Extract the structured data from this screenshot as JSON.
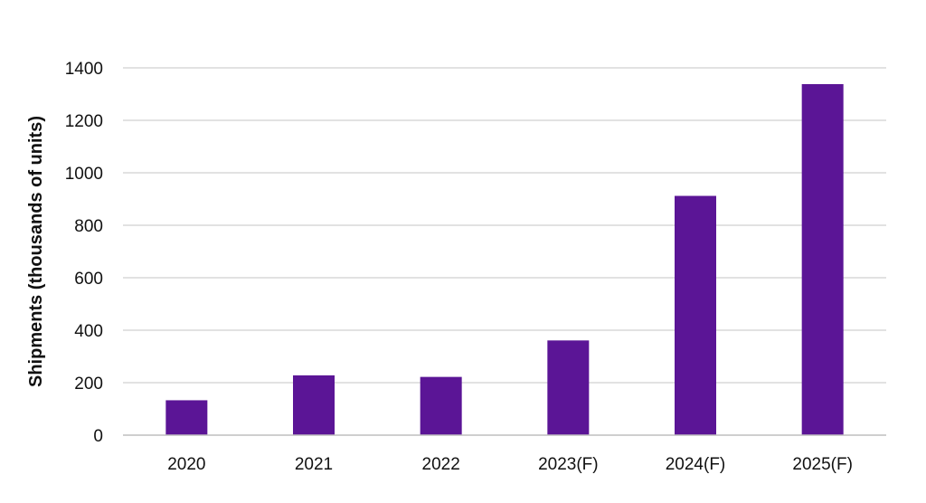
{
  "chart_data": {
    "type": "bar",
    "categories": [
      "2020",
      "2021",
      "2022",
      "2023(F)",
      "2024(F)",
      "2025(F)"
    ],
    "series": [
      {
        "values": [
          133,
          228,
          222,
          361,
          912,
          1338
        ],
        "color": "#5B1596"
      }
    ],
    "xlabel": "",
    "ylabel": "Shipments (thousands of units)",
    "ylim": [
      0,
      1400
    ],
    "yticks": [
      0,
      200,
      400,
      600,
      800,
      1000,
      1200,
      1400
    ],
    "grid": true,
    "legend": "none"
  },
  "colors": {
    "bar": "#5B1596",
    "grid": "#D9D9D9",
    "axis": "#BFBFBF",
    "text": "#111111"
  }
}
